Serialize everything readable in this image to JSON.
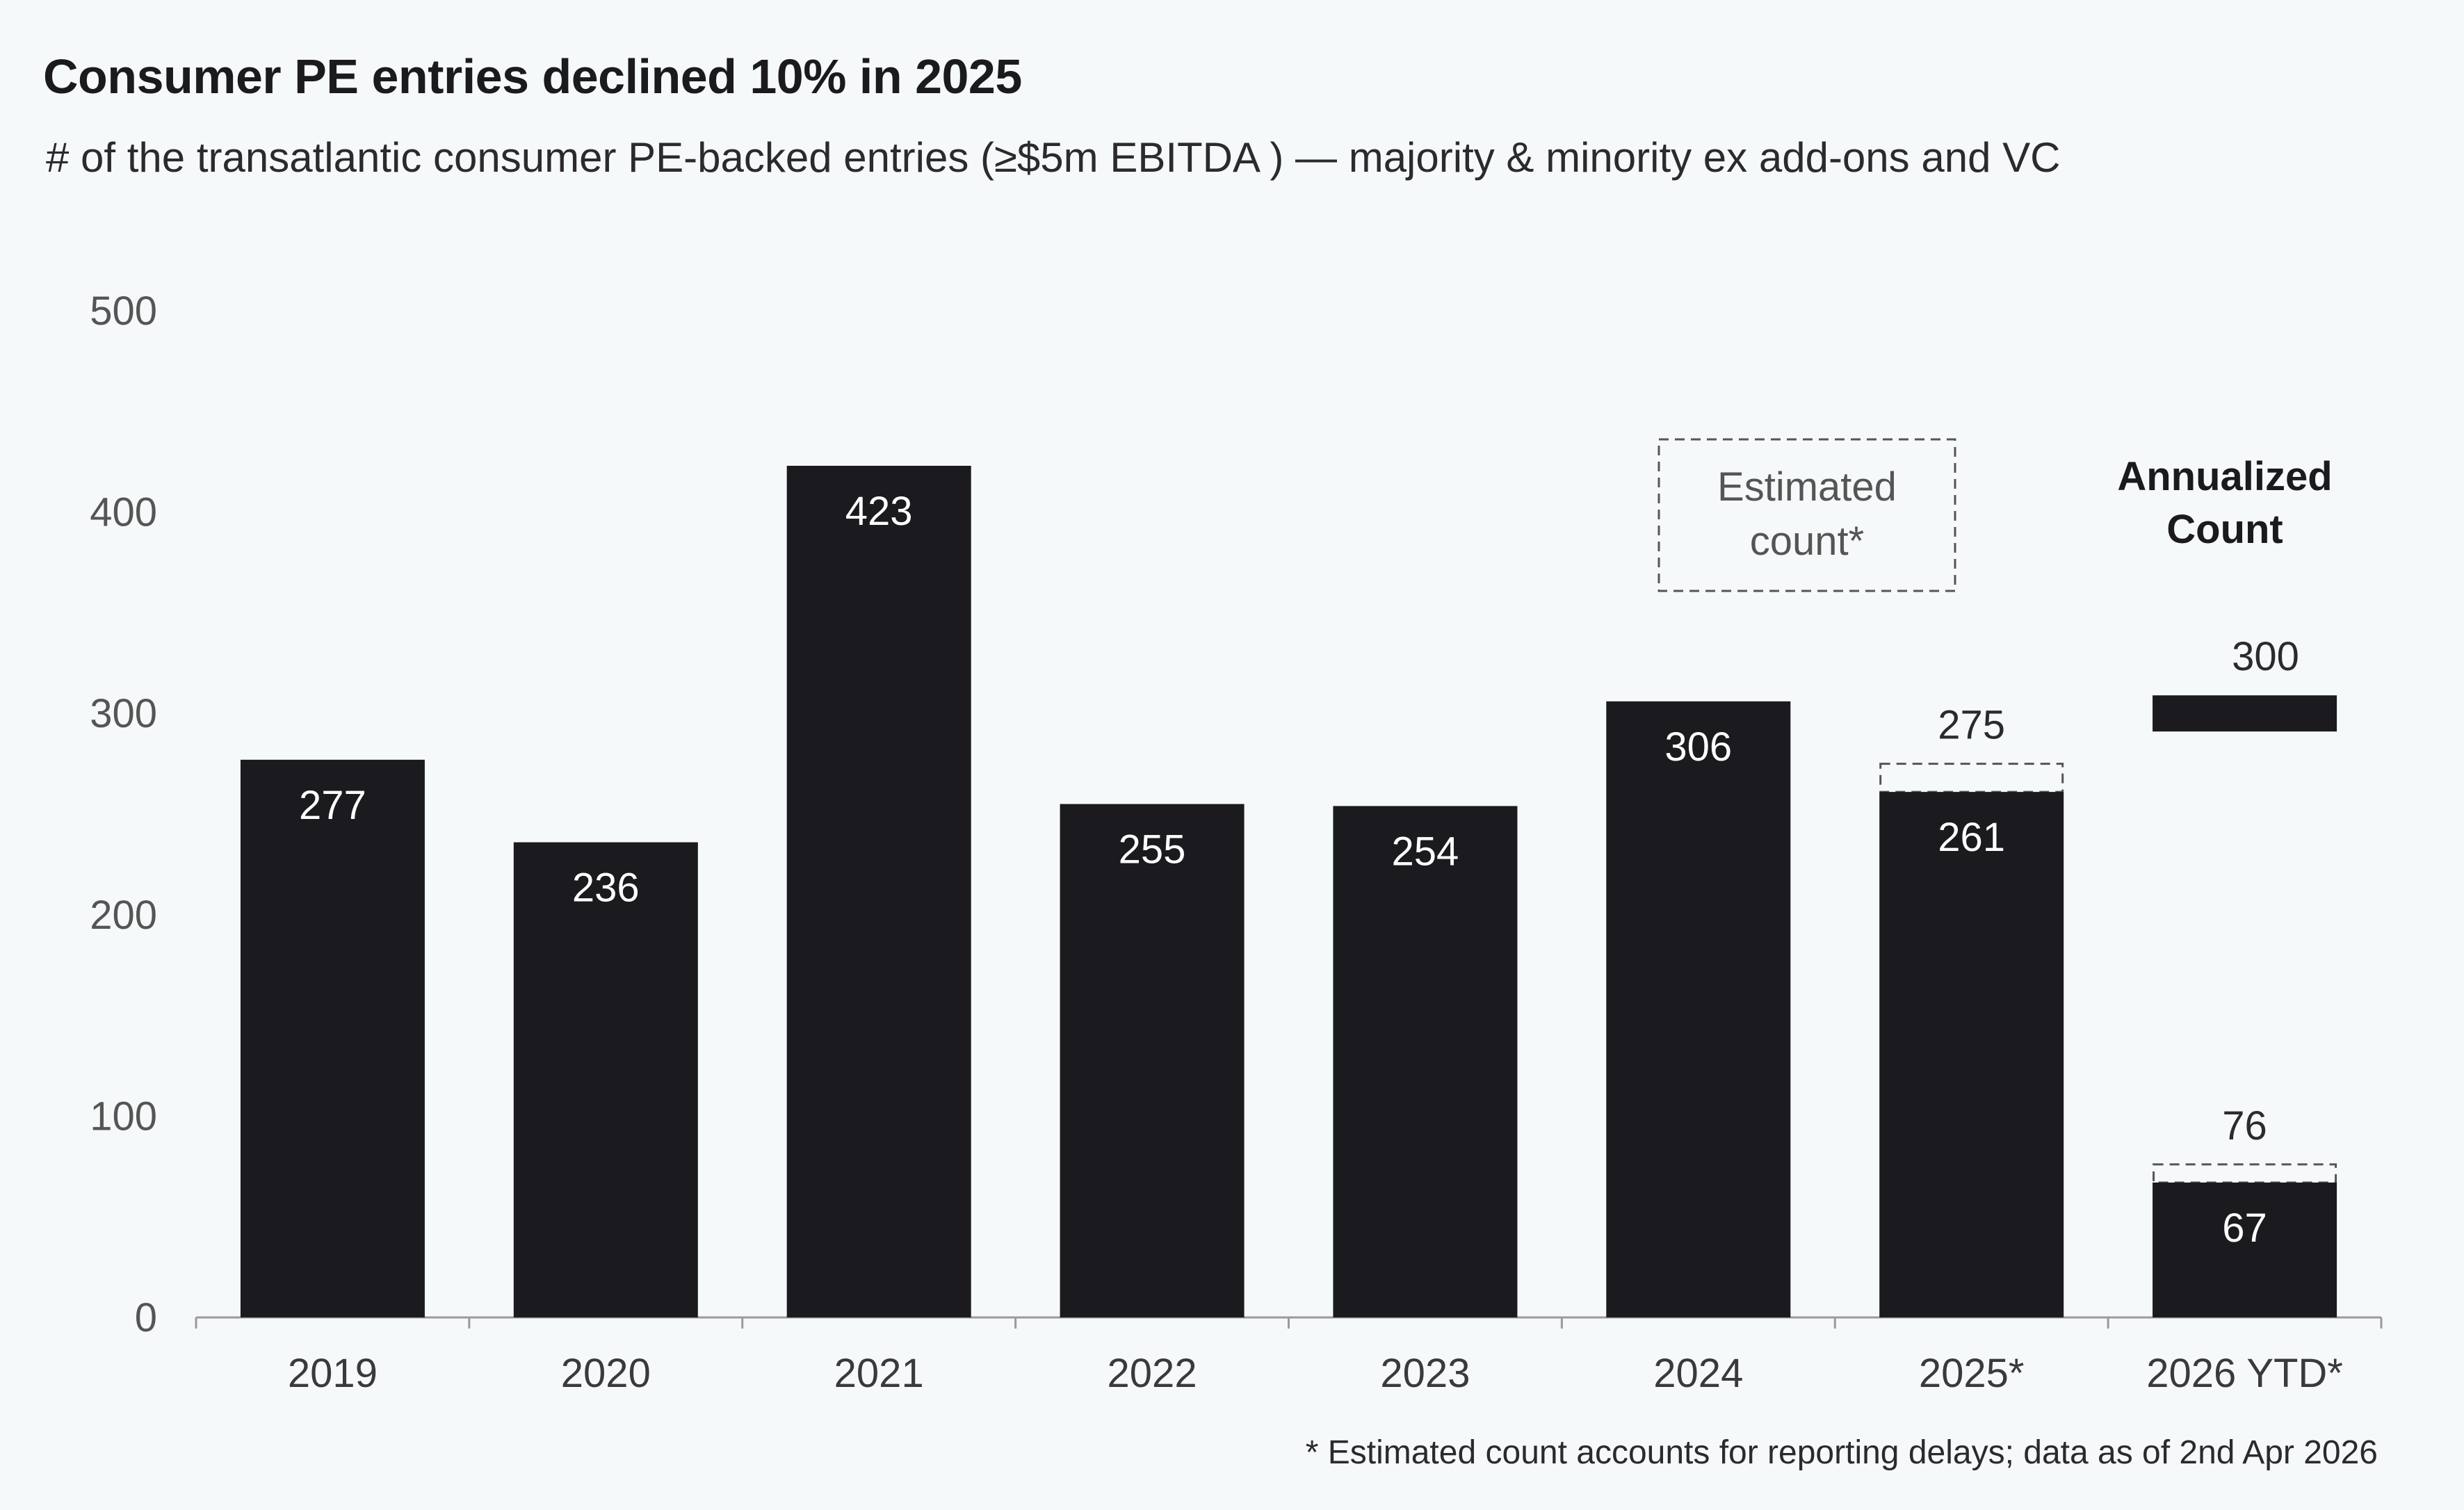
{
  "title": "Consumer PE entries declined 10% in 2025",
  "subtitle": "# of the transatlantic consumer PE-backed entries (≥$5m EBITDA ) — majority & minority ex add-ons and VC",
  "footnote": "* Estimated count accounts for reporting delays; data as of 2nd Apr 2026",
  "colors": {
    "bar": "#1b1a1e",
    "label_inside": "#ffffff",
    "label_outside": "#2b2a2f",
    "axis": "#9a9a9a",
    "estimate_border": "#555555",
    "background": "#f6f9fa"
  },
  "chart_data": {
    "type": "bar",
    "categories": [
      "2019",
      "2020",
      "2021",
      "2022",
      "2023",
      "2024",
      "2025*",
      "2026 YTD*"
    ],
    "series": [
      {
        "values": [
          277,
          236,
          423,
          255,
          254,
          306,
          261,
          67
        ]
      }
    ],
    "estimated_totals": [
      null,
      null,
      null,
      null,
      null,
      null,
      275,
      76
    ],
    "annualized": {
      "category": "2026 YTD*",
      "value": 300
    },
    "ylim": [
      0,
      500
    ],
    "yticks": [
      0,
      100,
      200,
      300,
      400,
      500
    ],
    "grid": false,
    "legend": {
      "estimated_label": "Estimated count*",
      "annualized_label": "Annualized Count"
    }
  }
}
